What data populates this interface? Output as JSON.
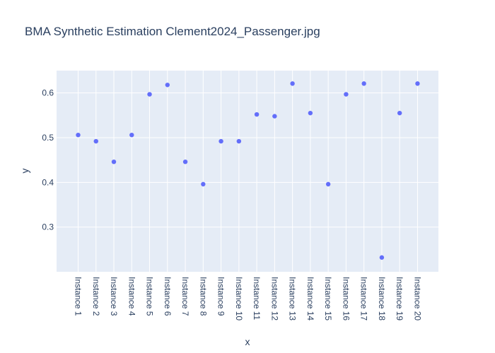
{
  "colors": {
    "plot_background": "#e5ecf6",
    "grid": "#ffffff",
    "marker": "#636efa",
    "text": "#2a3f5f"
  },
  "chart_data": {
    "type": "scatter",
    "title": "BMA Synthetic Estimation Clement2024_Passenger.jpg",
    "xlabel": "x",
    "ylabel": "y",
    "grid": true,
    "ylim": [
      0.2,
      0.65
    ],
    "yticks": [
      0.3,
      0.4,
      0.5,
      0.6
    ],
    "ytick_labels": [
      "0.3",
      "0.4",
      "0.5",
      "0.6"
    ],
    "categories": [
      "Instance 1",
      "Instance 2",
      "Instance 3",
      "Instance 4",
      "Instance 5",
      "Instance 6",
      "Instance 7",
      "Instance 8",
      "Instance 9",
      "Instance 10",
      "Instance 11",
      "Instance 12",
      "Instance 13",
      "Instance 14",
      "Instance 15",
      "Instance 16",
      "Instance 17",
      "Instance 18",
      "Instance 19",
      "Instance 20"
    ],
    "values": [
      0.506,
      0.492,
      0.446,
      0.506,
      0.597,
      0.618,
      0.446,
      0.396,
      0.492,
      0.492,
      0.552,
      0.548,
      0.621,
      0.555,
      0.396,
      0.597,
      0.621,
      0.232,
      0.555,
      0.621
    ]
  }
}
